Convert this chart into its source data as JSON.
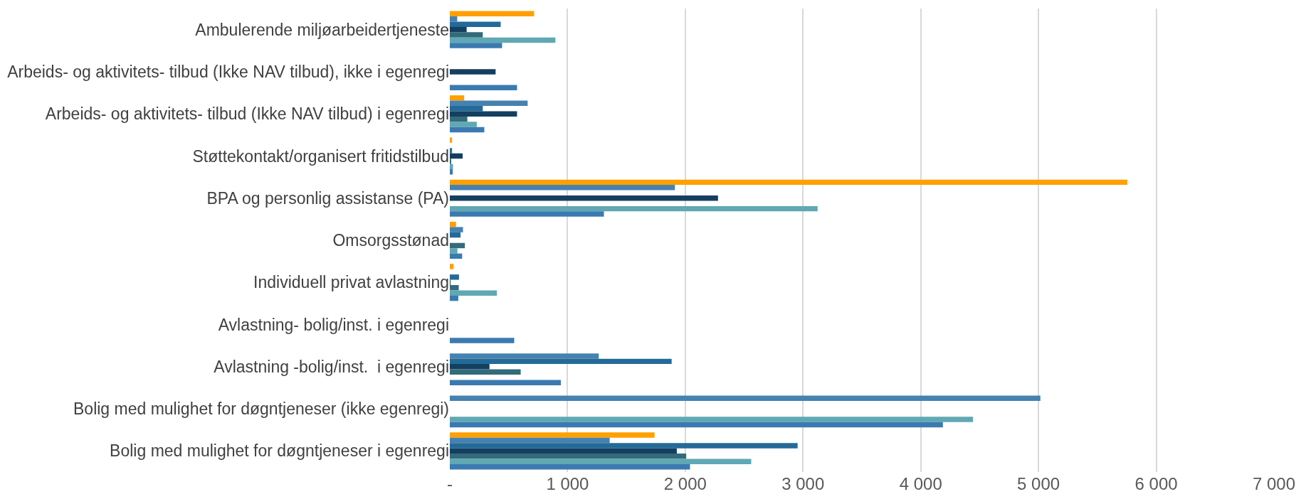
{
  "chart_data": {
    "type": "bar",
    "orientation": "horizontal",
    "categories": [
      "Ambulerende miljøarbeidertjeneste",
      "Arbeids- og aktivitets- tilbud (Ikke NAV tilbud), ikke i egenregi",
      "Arbeids- og aktivitets- tilbud (Ikke NAV tilbud) i egenregi",
      "Støttekontakt/organisert fritidstilbud",
      "BPA og personlig assistanse (PA)",
      "Omsorgsstønad",
      "Individuell privat avlastning",
      "Avlastning- bolig/inst. i egenregi",
      "Avlastning -bolig/inst.  i egenregi",
      "Bolig med mulighet for døgntjeneser (ikke egenregi)",
      "Bolig med mulighet for døgntjeneser i egenregi"
    ],
    "series": [
      {
        "color": "#ffa000",
        "values": [
          716,
          null,
          122,
          19,
          5754,
          53,
          32,
          null,
          null,
          null,
          1739
        ]
      },
      {
        "color": "#4682b0",
        "values": [
          63,
          null,
          661,
          null,
          1912,
          112,
          null,
          null,
          1265,
          5016,
          1358
        ]
      },
      {
        "color": "#246a98",
        "values": [
          432,
          null,
          280,
          19,
          null,
          91,
          78,
          null,
          1884,
          null,
          2954
        ]
      },
      {
        "color": "#143f60",
        "values": [
          143,
          389,
          571,
          109,
          2278,
          null,
          6,
          null,
          337,
          null,
          1928
        ]
      },
      {
        "color": "#336b7a",
        "values": [
          280,
          null,
          149,
          8,
          null,
          128,
          76,
          null,
          602,
          null,
          2008
        ]
      },
      {
        "color": "#5fa8b4",
        "values": [
          897,
          null,
          229,
          27,
          3124,
          65,
          400,
          null,
          null,
          4444,
          2560
        ]
      },
      {
        "color": "#3a7ab0",
        "values": [
          444,
          571,
          293,
          25,
          1309,
          105,
          72,
          547,
          943,
          4188,
          2040
        ]
      }
    ],
    "xlim": [
      0,
      7000
    ],
    "xticks": [
      {
        "value": 0,
        "label": "-"
      },
      {
        "value": 1000,
        "label": "1 000"
      },
      {
        "value": 2000,
        "label": "2 000"
      },
      {
        "value": 3000,
        "label": "3 000"
      },
      {
        "value": 4000,
        "label": "4 000"
      },
      {
        "value": 5000,
        "label": "5 000"
      },
      {
        "value": 6000,
        "label": "6 000"
      },
      {
        "value": 7000,
        "label": "7 000"
      }
    ],
    "grid": "x"
  }
}
